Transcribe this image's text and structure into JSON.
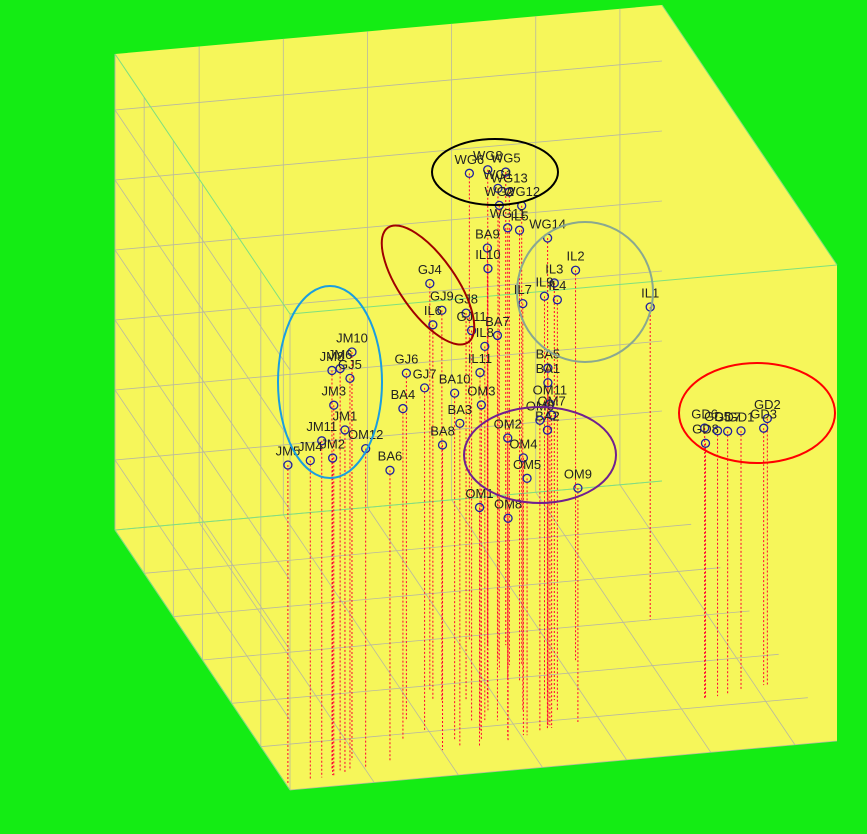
{
  "chart_data": {
    "type": "scatter3d",
    "xlim": [
      0.35,
      -0.3
    ],
    "ylim": [
      -0.3,
      0.3
    ],
    "zlim": [
      -0.35,
      0.33
    ],
    "xticks": [
      0.35,
      0.25,
      0.15,
      0.05,
      -0.05,
      -0.15,
      -0.25
    ],
    "yticks": [
      0.3,
      0.2,
      0.1,
      {
        "value": 0,
        "label": "0.0"
      },
      -0.1,
      -0.2,
      -0.3
    ],
    "zticks": [
      {
        "value": 0.25,
        "label": "0,25"
      },
      {
        "value": 0.15,
        "label": "0,15"
      },
      {
        "value": 0.05,
        "label": "0,05"
      },
      {
        "value": -0.05,
        "label": "-0,05"
      },
      {
        "value": -0.15,
        "label": "-0,15"
      },
      {
        "value": -0.25,
        "label": "-0,25"
      }
    ],
    "grid": true,
    "marker_color": "#2020a0",
    "drop_line_color": "#ff0033",
    "points": [
      {
        "name": "WG6",
        "x": 0.036,
        "y": -0.009,
        "z": 0.317
      },
      {
        "name": "WG8",
        "x": 0.019,
        "y": -0.023,
        "z": 0.329
      },
      {
        "name": "WG5",
        "x": -0.001,
        "y": -0.027,
        "z": 0.326
      },
      {
        "name": "WG1",
        "x": 0.019,
        "y": -0.058,
        "z": 0.324
      },
      {
        "name": "WG13",
        "x": 0.01,
        "y": -0.071,
        "z": 0.326
      },
      {
        "name": "WG12",
        "x": -0.004,
        "y": -0.073,
        "z": 0.306
      },
      {
        "name": "WG2",
        "x": 0.025,
        "y": -0.08,
        "z": 0.314
      },
      {
        "name": "WG14",
        "x": -0.014,
        "y": -0.133,
        "z": 0.296
      },
      {
        "name": "WG11",
        "x": 0.023,
        "y": -0.103,
        "z": 0.296
      },
      {
        "name": "IL5",
        "x": 0.01,
        "y": -0.106,
        "z": 0.293
      },
      {
        "name": "BA9",
        "x": 0.061,
        "y": -0.143,
        "z": 0.296
      },
      {
        "name": "IL10",
        "x": 0.068,
        "y": -0.165,
        "z": 0.281
      },
      {
        "name": "IL3",
        "x": -0.014,
        "y": -0.156,
        "z": 0.246
      },
      {
        "name": "IL2",
        "x": -0.068,
        "y": -0.073,
        "z": 0.207
      },
      {
        "name": "IL4",
        "x": -0.01,
        "y": -0.178,
        "z": 0.236
      },
      {
        "name": "IL9",
        "x": -0.003,
        "y": -0.154,
        "z": 0.227
      },
      {
        "name": "IL7",
        "x": 0.029,
        "y": -0.172,
        "z": 0.231
      },
      {
        "name": "IL1",
        "x": -0.182,
        "y": 0,
        "z": 0.097
      },
      {
        "name": "GJ4",
        "x": 0.118,
        "y": -0.11,
        "z": 0.231
      },
      {
        "name": "GJ9",
        "x": 0.112,
        "y": -0.134,
        "z": 0.207
      },
      {
        "name": "GJ8",
        "x": 0.085,
        "y": -0.139,
        "z": 0.203
      },
      {
        "name": "IL6",
        "x": 0.122,
        "y": -0.132,
        "z": 0.186
      },
      {
        "name": "GJ11",
        "x": 0.094,
        "y": -0.184,
        "z": 0.207
      },
      {
        "name": "BA7",
        "x": 0.065,
        "y": -0.189,
        "z": 0.2
      },
      {
        "name": "IL8",
        "x": 0.079,
        "y": -0.186,
        "z": 0.184
      },
      {
        "name": "GJ6",
        "x": 0.167,
        "y": -0.171,
        "z": 0.146
      },
      {
        "name": "GJ7",
        "x": 0.154,
        "y": -0.196,
        "z": 0.139
      },
      {
        "name": "BA4",
        "x": 0.186,
        "y": -0.214,
        "z": 0.124
      },
      {
        "name": "BA10",
        "x": 0.128,
        "y": -0.224,
        "z": 0.146
      },
      {
        "name": "IL11",
        "x": 0.092,
        "y": -0.207,
        "z": 0.161
      },
      {
        "name": "BA5",
        "x": 0.012,
        "y": -0.209,
        "z": 0.16
      },
      {
        "name": "BA1",
        "x": 0.012,
        "y": -0.209,
        "z": 0.139
      },
      {
        "name": "OM11",
        "x": 0.01,
        "y": -0.21,
        "z": 0.109
      },
      {
        "name": "OM7",
        "x": 0.01,
        "y": -0.216,
        "z": 0.097
      },
      {
        "name": "BA2",
        "x": 0.015,
        "y": -0.216,
        "z": 0.076
      },
      {
        "name": "OM6",
        "x": 0.025,
        "y": -0.219,
        "z": 0.093
      },
      {
        "name": "BA3",
        "x": 0.126,
        "y": -0.236,
        "z": 0.11
      },
      {
        "name": "OM3",
        "x": 0.098,
        "y": -0.229,
        "z": 0.129
      },
      {
        "name": "BA8",
        "x": 0.149,
        "y": -0.243,
        "z": 0.086
      },
      {
        "name": "OM2",
        "x": 0.067,
        "y": -0.23,
        "z": 0.079
      },
      {
        "name": "OM4",
        "x": 0.047,
        "y": -0.226,
        "z": 0.046
      },
      {
        "name": "OM5",
        "x": 0.043,
        "y": -0.227,
        "z": 0.017
      },
      {
        "name": "OM9",
        "x": -0.024,
        "y": -0.208,
        "z": -0.016
      },
      {
        "name": "OM1",
        "x": 0.104,
        "y": -0.24,
        "z": -0.01
      },
      {
        "name": "OM8",
        "x": 0.068,
        "y": -0.234,
        "z": -0.033
      },
      {
        "name": "BA6",
        "x": 0.217,
        "y": -0.259,
        "z": 0.067
      },
      {
        "name": "JM10",
        "x": 0.258,
        "y": -0.247,
        "z": 0.233
      },
      {
        "name": "JM8",
        "x": 0.288,
        "y": -0.265,
        "z": 0.221
      },
      {
        "name": "JM6",
        "x": 0.279,
        "y": -0.267,
        "z": 0.224
      },
      {
        "name": "GJ5",
        "x": 0.268,
        "y": -0.269,
        "z": 0.21
      },
      {
        "name": "JM3",
        "x": 0.29,
        "y": -0.277,
        "z": 0.179
      },
      {
        "name": "JM1",
        "x": 0.275,
        "y": -0.272,
        "z": 0.139
      },
      {
        "name": "JM11",
        "x": 0.305,
        "y": -0.279,
        "z": 0.131
      },
      {
        "name": "OM12",
        "x": 0.249,
        "y": -0.268,
        "z": 0.107
      },
      {
        "name": "JM2",
        "x": 0.291,
        "y": -0.276,
        "z": 0.103
      },
      {
        "name": "JM4",
        "x": 0.32,
        "y": -0.283,
        "z": 0.107
      },
      {
        "name": "JM5",
        "x": 0.348,
        "y": -0.287,
        "z": 0.106
      },
      {
        "name": "GD2",
        "x": -0.264,
        "y": -0.165,
        "z": 0.031
      },
      {
        "name": "GD3",
        "x": -0.26,
        "y": -0.164,
        "z": 0.017
      },
      {
        "name": "GD1",
        "x": -0.231,
        "y": -0.17,
        "z": 0.02
      },
      {
        "name": "GD7",
        "x": -0.212,
        "y": -0.179,
        "z": 0.027
      },
      {
        "name": "GD6",
        "x": -0.184,
        "y": -0.181,
        "z": 0.036
      },
      {
        "name": "GD8",
        "x": -0.185,
        "y": -0.181,
        "z": 0.014
      },
      {
        "name": "GD5",
        "x": -0.2,
        "y": -0.179,
        "z": 0.029
      }
    ]
  }
}
